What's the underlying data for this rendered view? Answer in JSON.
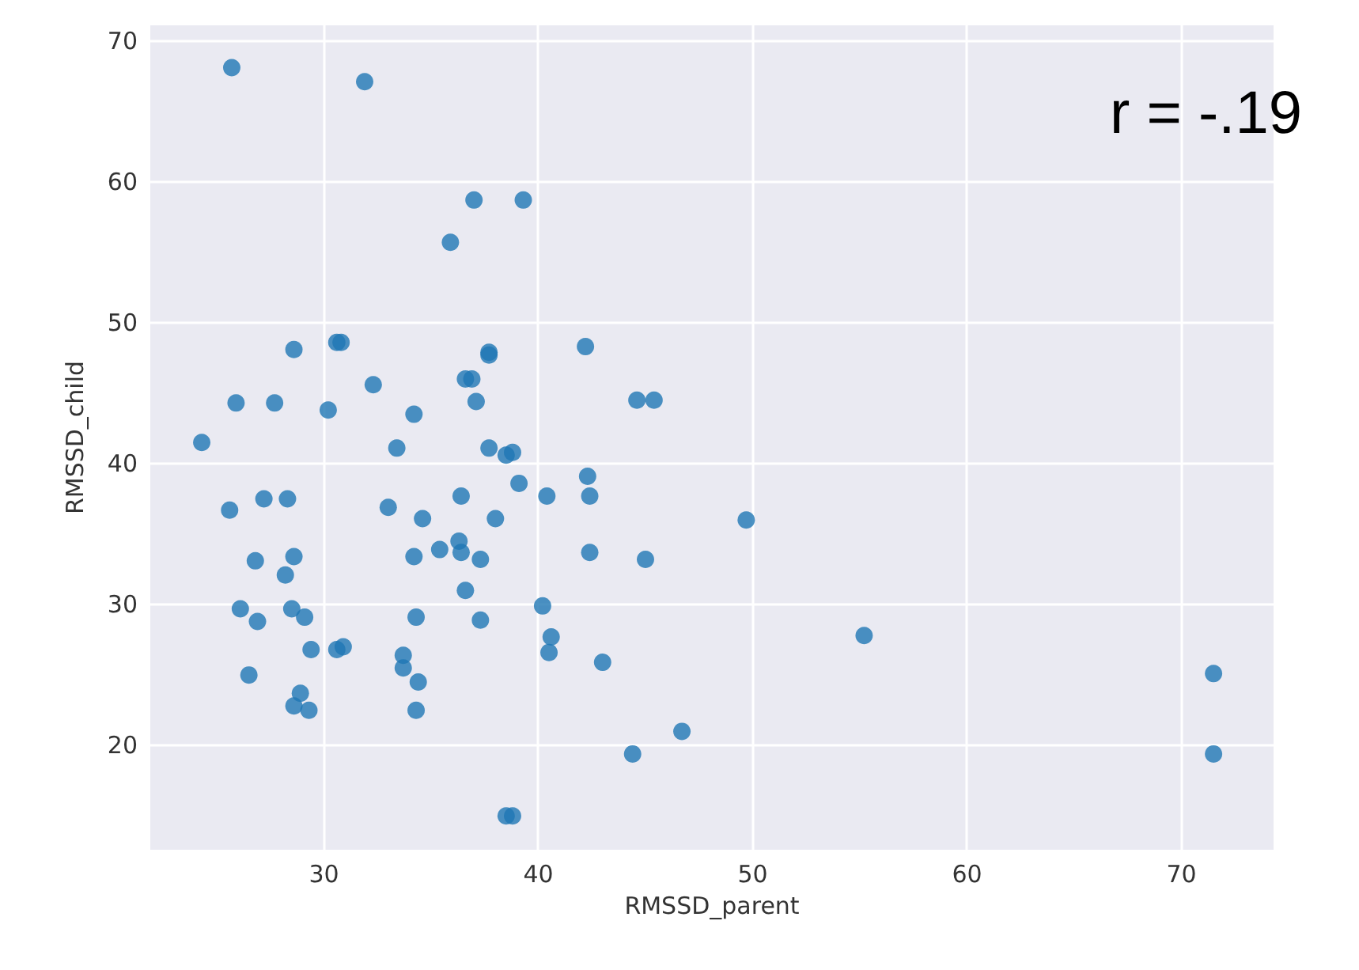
{
  "chart_data": {
    "type": "scatter",
    "xlabel": "RMSSD_parent",
    "ylabel": "RMSSD_child",
    "x": [
      25.7,
      31.9,
      37.0,
      39.3,
      35.9,
      28.6,
      30.6,
      30.8,
      37.7,
      37.7,
      42.2,
      32.3,
      36.6,
      36.9,
      37.1,
      25.9,
      27.7,
      30.2,
      34.2,
      44.6,
      45.4,
      24.3,
      33.4,
      37.7,
      38.5,
      38.8,
      42.3,
      42.4,
      39.1,
      36.4,
      40.4,
      27.2,
      28.3,
      25.6,
      33.0,
      34.6,
      38.0,
      36.3,
      35.4,
      36.4,
      34.2,
      37.3,
      42.4,
      45.0,
      26.8,
      28.6,
      28.2,
      36.6,
      26.1,
      28.5,
      29.1,
      26.9,
      34.3,
      37.3,
      40.2,
      40.6,
      40.5,
      43.0,
      29.4,
      30.6,
      30.9,
      33.7,
      33.7,
      34.4,
      34.3,
      26.5,
      28.9,
      28.6,
      29.3,
      46.7,
      44.4,
      38.5,
      38.8,
      49.7,
      55.2,
      71.5,
      71.5
    ],
    "values": [
      68.1,
      67.1,
      58.7,
      58.7,
      55.7,
      48.1,
      48.6,
      48.6,
      47.7,
      47.9,
      48.3,
      45.6,
      46.0,
      46.0,
      44.4,
      44.3,
      44.3,
      43.8,
      43.5,
      44.5,
      44.5,
      41.5,
      41.1,
      41.1,
      40.6,
      40.8,
      39.1,
      37.7,
      38.6,
      37.7,
      37.7,
      37.5,
      37.5,
      36.7,
      36.9,
      36.1,
      36.1,
      34.5,
      33.9,
      33.7,
      33.4,
      33.2,
      33.7,
      33.2,
      33.1,
      33.4,
      32.1,
      31.0,
      29.7,
      29.7,
      29.1,
      28.8,
      29.1,
      28.9,
      29.9,
      27.7,
      26.6,
      25.9,
      26.8,
      26.8,
      27.0,
      26.4,
      25.5,
      24.5,
      22.5,
      25.0,
      23.7,
      22.8,
      22.5,
      21.0,
      19.4,
      15.0,
      15.0,
      36.0,
      27.8,
      25.1,
      19.4
    ],
    "color": "#1f77b4",
    "marker": "circle",
    "xlim": [
      21.9,
      74.3
    ],
    "ylim": [
      12.6,
      71.1
    ],
    "xticks": [
      30,
      40,
      50,
      60,
      70
    ],
    "yticks": [
      20,
      30,
      40,
      50,
      60,
      70
    ],
    "grid": true,
    "annotations": [
      "r = -.19"
    ]
  }
}
